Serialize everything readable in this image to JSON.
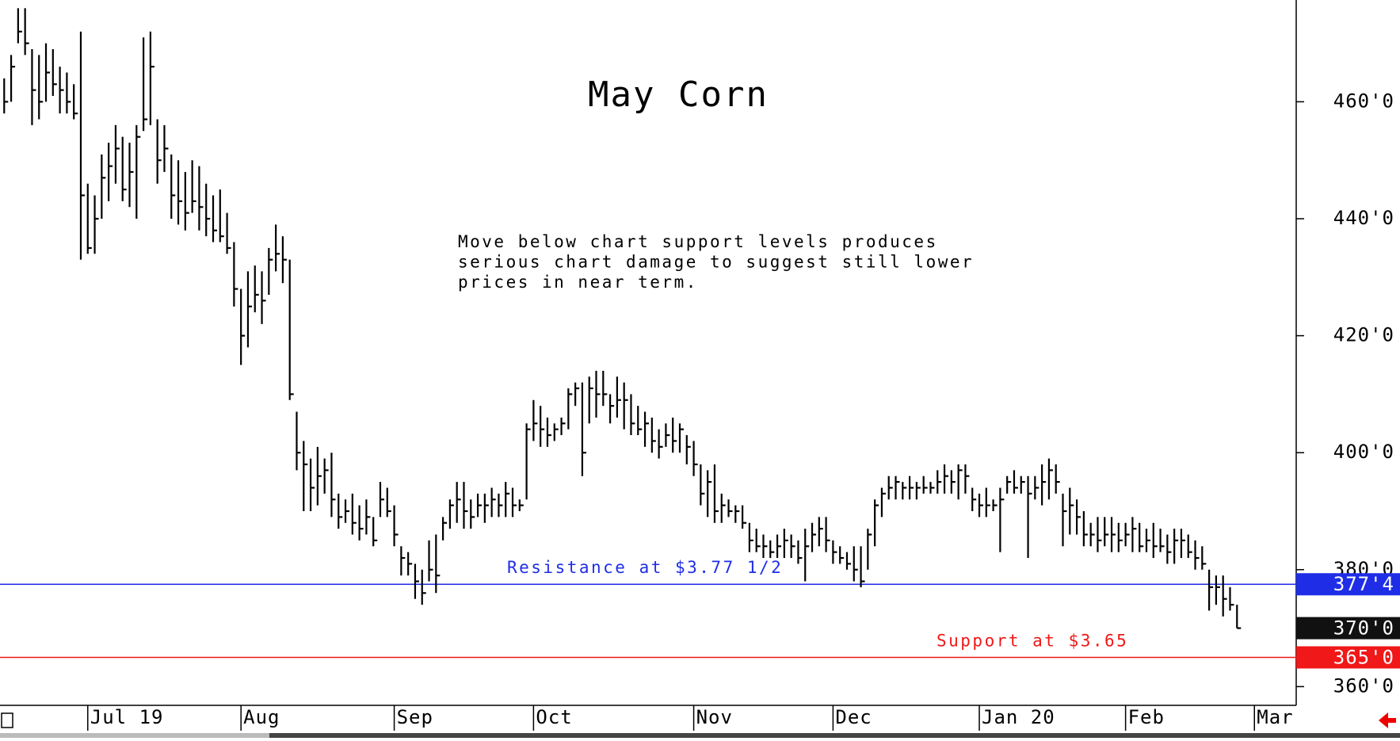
{
  "chart_data": {
    "type": "ohlc",
    "title": "May Corn",
    "annotation": [
      "Move below chart support levels produces",
      "serious chart damage to suggest still lower",
      "prices in near term."
    ],
    "color": "#000000",
    "high": [
      464,
      468,
      476,
      476,
      469,
      468,
      470,
      469,
      466,
      465,
      463,
      472,
      446,
      444,
      451,
      453,
      456,
      454,
      453,
      456,
      471,
      472,
      457,
      456,
      451,
      450,
      448,
      450,
      449,
      446,
      444,
      445,
      441,
      436,
      428,
      431,
      432,
      431,
      435,
      439,
      437,
      433,
      407,
      402,
      399,
      401,
      399,
      400,
      393,
      392,
      393,
      391,
      392,
      389,
      395,
      394,
      391,
      384,
      383,
      381,
      380,
      385,
      386,
      389,
      392,
      395,
      395,
      392,
      393,
      393,
      394,
      393,
      395,
      394,
      392,
      405,
      409,
      408,
      406,
      405,
      406,
      411,
      412,
      412,
      413,
      414,
      414,
      410,
      413,
      412,
      410,
      408,
      407,
      406,
      404,
      405,
      406,
      405,
      403,
      402,
      398,
      397,
      398,
      393,
      392,
      391,
      391,
      388,
      387,
      386,
      385,
      386,
      387,
      386,
      385,
      387,
      388,
      389,
      389,
      385,
      384,
      383,
      384,
      384,
      387,
      392,
      394,
      396,
      396,
      395,
      396,
      395,
      396,
      395,
      397,
      398,
      397,
      398,
      398,
      394,
      393,
      394,
      392,
      394,
      396,
      397,
      396,
      396,
      396,
      398,
      399,
      398,
      393,
      394,
      392,
      390,
      388,
      389,
      389,
      389,
      388,
      388,
      389,
      388,
      387,
      388,
      387,
      386,
      387,
      387,
      386,
      385,
      384,
      380,
      379,
      379,
      377,
      374
    ],
    "low": [
      458,
      460,
      470,
      468,
      456,
      457,
      460,
      461,
      458,
      458,
      457,
      433,
      434,
      434,
      440,
      443,
      446,
      443,
      442,
      440,
      455,
      456,
      446,
      448,
      440,
      439,
      438,
      441,
      438,
      437,
      436,
      436,
      434,
      425,
      415,
      418,
      424,
      422,
      427,
      431,
      429,
      409,
      397,
      390,
      390,
      391,
      393,
      389,
      387,
      388,
      386,
      385,
      386,
      384,
      389,
      389,
      384,
      379,
      379,
      375,
      374,
      378,
      376,
      385,
      387,
      388,
      387,
      387,
      389,
      388,
      389,
      389,
      389,
      389,
      390,
      392,
      402,
      401,
      401,
      402,
      403,
      404,
      408,
      396,
      405,
      406,
      408,
      405,
      406,
      404,
      403,
      403,
      401,
      400,
      399,
      401,
      400,
      400,
      398,
      396,
      391,
      389,
      388,
      388,
      389,
      388,
      387,
      383,
      383,
      382,
      382,
      382,
      382,
      382,
      381,
      378,
      383,
      384,
      383,
      381,
      381,
      380,
      378,
      377,
      380,
      384,
      389,
      392,
      392,
      392,
      392,
      392,
      393,
      393,
      393,
      393,
      393,
      392,
      393,
      390,
      389,
      389,
      390,
      383,
      393,
      393,
      393,
      382,
      392,
      391,
      392,
      393,
      384,
      386,
      386,
      384,
      384,
      383,
      384,
      383,
      383,
      384,
      383,
      383,
      383,
      382,
      383,
      381,
      381,
      382,
      382,
      380,
      380,
      373,
      374,
      372,
      373,
      370
    ],
    "close": [
      460,
      466,
      472,
      470,
      462,
      460,
      465,
      463,
      462,
      460,
      458,
      444,
      435,
      440,
      447,
      449,
      452,
      445,
      448,
      454,
      457,
      466,
      450,
      452,
      444,
      443,
      441,
      443,
      442,
      440,
      438,
      437,
      435,
      428,
      420,
      425,
      427,
      426,
      433,
      434,
      433,
      410,
      400,
      398,
      394,
      396,
      397,
      392,
      389,
      390,
      388,
      387,
      389,
      385,
      392,
      390,
      386,
      382,
      381,
      378,
      376,
      380,
      379,
      388,
      391,
      392,
      390,
      389,
      391,
      391,
      392,
      391,
      393,
      391,
      391,
      404,
      405,
      404,
      403,
      404,
      405,
      410,
      411,
      400,
      411,
      410,
      410,
      408,
      409,
      409,
      405,
      404,
      405,
      402,
      401,
      403,
      402,
      404,
      401,
      398,
      393,
      395,
      390,
      391,
      390,
      390,
      388,
      385,
      384,
      384,
      383,
      384,
      385,
      384,
      382,
      384,
      386,
      387,
      385,
      383,
      382,
      381,
      380,
      378,
      386,
      391,
      393,
      394,
      395,
      394,
      394,
      394,
      394,
      394,
      395,
      396,
      395,
      397,
      396,
      392,
      391,
      391,
      391,
      392,
      395,
      394,
      395,
      393,
      394,
      395,
      397,
      395,
      390,
      391,
      389,
      386,
      386,
      385,
      386,
      386,
      385,
      386,
      387,
      384,
      385,
      384,
      384,
      383,
      385,
      385,
      383,
      382,
      381,
      377,
      377,
      375,
      374,
      370
    ],
    "xlim": [
      -0.6,
      185.5
    ],
    "xticks": [
      {
        "value": 12,
        "label": "Jul 19"
      },
      {
        "value": 34,
        "label": "Aug"
      },
      {
        "value": 56,
        "label": "Sep"
      },
      {
        "value": 76,
        "label": "Oct"
      },
      {
        "value": 99,
        "label": "Nov"
      },
      {
        "value": 119,
        "label": "Dec"
      },
      {
        "value": 140,
        "label": "Jan 20"
      },
      {
        "value": 161,
        "label": "Feb"
      },
      {
        "value": 179.5,
        "label": "Mar"
      }
    ],
    "ylim": [
      356.8,
      477.4
    ],
    "yticks": [
      {
        "value": 360,
        "label": "360'0"
      },
      {
        "value": 380,
        "label": "380'0"
      },
      {
        "value": 400,
        "label": "400'0"
      },
      {
        "value": 420,
        "label": "420'0"
      },
      {
        "value": 440,
        "label": "440'0"
      },
      {
        "value": 460,
        "label": "460'0"
      }
    ],
    "levels": [
      {
        "name": "Resistance at $3.77 1/2",
        "value": 377.5,
        "label": "377'4",
        "color": "#1f2ee6"
      },
      {
        "name": "Support at $3.65",
        "value": 365,
        "label": "365'0",
        "color": "#f01818"
      }
    ],
    "last_price": {
      "value": 370,
      "label": "370'0",
      "color": "#111111"
    }
  }
}
